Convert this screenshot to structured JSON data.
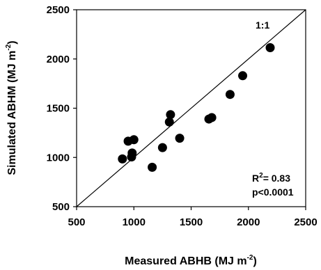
{
  "chart_data": {
    "type": "scatter",
    "xlabel": {
      "main": "Measured ABHB (MJ m",
      "sup": "-2",
      "tail": ")"
    },
    "ylabel": {
      "main": "Simulated ABHM (MJ m",
      "sup": "-2",
      "tail": ")"
    },
    "xlim": [
      500,
      2500
    ],
    "ylim": [
      500,
      2500
    ],
    "xticks": [
      500,
      1000,
      1500,
      2000,
      2500
    ],
    "yticks": [
      500,
      1000,
      1500,
      2000,
      2500
    ],
    "grid": false,
    "reference_line": {
      "label": "1:1",
      "from": [
        500,
        500
      ],
      "to": [
        2500,
        2500
      ]
    },
    "stats": {
      "r2_prefix": "R",
      "r2_sup": "2",
      "r2_value": "= 0.83",
      "p": "p<0.0001"
    },
    "points": [
      {
        "x": 900,
        "y": 985
      },
      {
        "x": 950,
        "y": 1165
      },
      {
        "x": 980,
        "y": 1005
      },
      {
        "x": 985,
        "y": 1045
      },
      {
        "x": 1000,
        "y": 1180
      },
      {
        "x": 1160,
        "y": 900
      },
      {
        "x": 1250,
        "y": 1100
      },
      {
        "x": 1310,
        "y": 1360
      },
      {
        "x": 1320,
        "y": 1435
      },
      {
        "x": 1400,
        "y": 1195
      },
      {
        "x": 1655,
        "y": 1390
      },
      {
        "x": 1680,
        "y": 1405
      },
      {
        "x": 1840,
        "y": 1640
      },
      {
        "x": 1950,
        "y": 1830
      },
      {
        "x": 2190,
        "y": 2115
      }
    ]
  }
}
